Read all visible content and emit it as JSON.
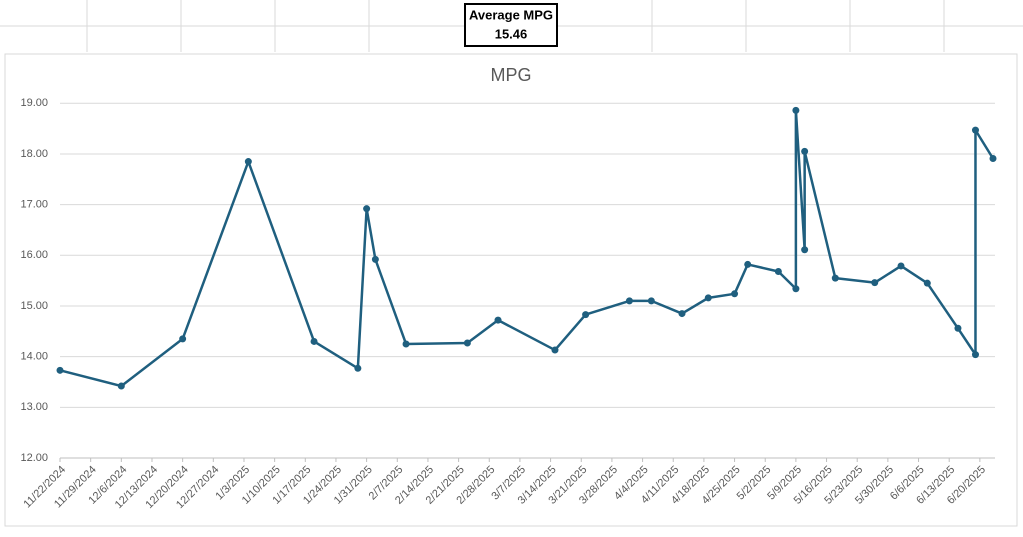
{
  "summary": {
    "label": "Average MPG",
    "value": 15.46
  },
  "chart_data": {
    "type": "line",
    "title": "MPG",
    "x": [
      "11/22/2024",
      "12/6/2024",
      "12/20/2024",
      "1/4/2025",
      "1/19/2025",
      "1/29/2025",
      "1/31/2025",
      "2/2/2025",
      "2/9/2025",
      "2/23/2025",
      "3/2/2025",
      "3/15/2025",
      "3/22/2025",
      "4/1/2025",
      "4/6/2025",
      "4/13/2025",
      "4/19/2025",
      "4/25/2025",
      "4/28/2025",
      "5/5/2025",
      "5/9/2025",
      "5/9/2025",
      "5/11/2025",
      "5/11/2025",
      "5/18/2025",
      "5/27/2025",
      "6/2/2025",
      "6/8/2025",
      "6/15/2025",
      "6/19/2025",
      "6/19/2025",
      "6/23/2025"
    ],
    "series": [
      {
        "name": "MPG",
        "color": "#1f5f7f",
        "values": [
          13.73,
          13.42,
          14.35,
          17.85,
          14.3,
          13.77,
          16.92,
          15.92,
          14.25,
          14.27,
          14.72,
          14.13,
          14.83,
          15.1,
          15.1,
          14.85,
          15.16,
          15.24,
          15.82,
          15.68,
          15.34,
          18.86,
          16.11,
          18.05,
          15.55,
          15.46,
          15.79,
          15.45,
          14.56,
          14.04,
          18.47,
          17.91
        ]
      }
    ],
    "xlim": [
      "11/22/2024",
      "6/23/2025"
    ],
    "xticks": [
      "11/22/2024",
      "11/29/2024",
      "12/6/2024",
      "12/13/2024",
      "12/20/2024",
      "12/27/2024",
      "1/3/2025",
      "1/10/2025",
      "1/17/2025",
      "1/24/2025",
      "1/31/2025",
      "2/7/2025",
      "2/14/2025",
      "2/21/2025",
      "2/28/2025",
      "3/7/2025",
      "3/14/2025",
      "3/21/2025",
      "3/28/2025",
      "4/4/2025",
      "4/11/2025",
      "4/18/2025",
      "4/25/2025",
      "5/2/2025",
      "5/9/2025",
      "5/16/2025",
      "5/23/2025",
      "5/30/2025",
      "6/6/2025",
      "6/13/2025",
      "6/20/2025"
    ],
    "ylim": [
      12,
      19.4
    ],
    "yticks": [
      {
        "value": 12,
        "label": "12.00"
      },
      {
        "value": 13,
        "label": "13.00"
      },
      {
        "value": 14,
        "label": "14.00"
      },
      {
        "value": 15,
        "label": "15.00"
      },
      {
        "value": 16,
        "label": "16.00"
      },
      {
        "value": 17,
        "label": "17.00"
      },
      {
        "value": 18,
        "label": "18.00"
      },
      {
        "value": 19,
        "label": "19.00"
      }
    ],
    "grid": true
  }
}
